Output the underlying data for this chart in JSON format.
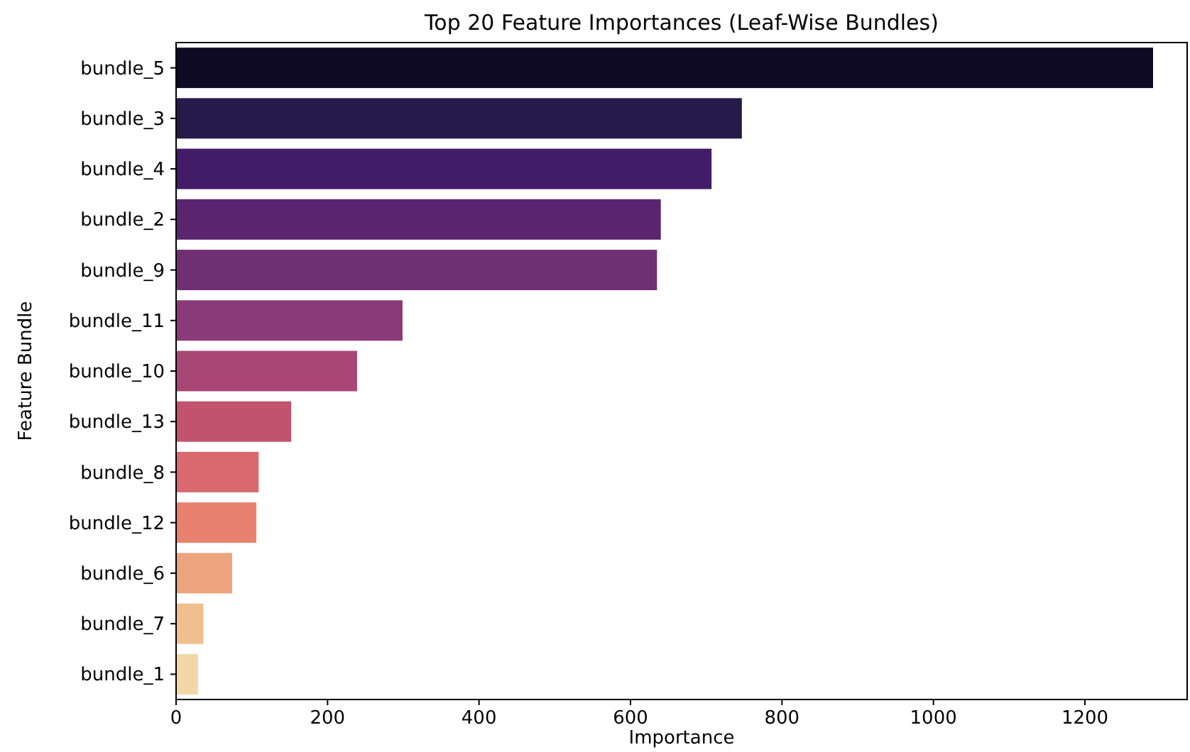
{
  "chart_data": {
    "type": "bar",
    "orientation": "horizontal",
    "title": "Top 20 Feature Importances (Leaf-Wise Bundles)",
    "xlabel": "Importance",
    "ylabel": "Feature Bundle",
    "categories": [
      "bundle_5",
      "bundle_3",
      "bundle_4",
      "bundle_2",
      "bundle_9",
      "bundle_11",
      "bundle_10",
      "bundle_13",
      "bundle_8",
      "bundle_12",
      "bundle_6",
      "bundle_7",
      "bundle_1"
    ],
    "values": [
      1290,
      747,
      707,
      640,
      635,
      299,
      239,
      152,
      109,
      106,
      74,
      36,
      29
    ],
    "colors": [
      "#0f0b24",
      "#261a4a",
      "#421c66",
      "#5a246f",
      "#712f74",
      "#8b3a78",
      "#a84676",
      "#c2536f",
      "#d9696e",
      "#e8826f",
      "#eda47c",
      "#f0bf8f",
      "#f2d8a6"
    ],
    "xlim": [
      0,
      1335
    ],
    "xticks": [
      0,
      200,
      400,
      600,
      800,
      1000,
      1200
    ]
  }
}
